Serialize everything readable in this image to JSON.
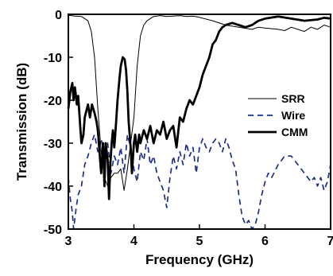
{
  "chart_data": {
    "type": "line",
    "title": "",
    "xlabel": "Frequency (GHz)",
    "ylabel": "Transmission (dB)",
    "xlim": [
      3,
      7
    ],
    "ylim": [
      -50,
      0
    ],
    "xticks": [
      3,
      4,
      5,
      6,
      7
    ],
    "yticks": [
      -50,
      -40,
      -30,
      -20,
      -10,
      0
    ],
    "xtick_labels": [
      "3",
      "4",
      "5",
      "6",
      "7"
    ],
    "ytick_labels": [
      "-50",
      "-40",
      "-30",
      "-20",
      "-10",
      "0"
    ],
    "grid": false,
    "legend": "right",
    "series": [
      {
        "name": "SRR",
        "color": "#000000",
        "style": "thin-solid",
        "points": [
          [
            3.0,
            -0.2
          ],
          [
            3.1,
            -0.4
          ],
          [
            3.2,
            -0.5
          ],
          [
            3.3,
            -1.5
          ],
          [
            3.35,
            -4
          ],
          [
            3.4,
            -10
          ],
          [
            3.45,
            -22
          ],
          [
            3.5,
            -32
          ],
          [
            3.55,
            -38
          ],
          [
            3.6,
            -40
          ],
          [
            3.65,
            -38
          ],
          [
            3.7,
            -37
          ],
          [
            3.75,
            -37
          ],
          [
            3.8,
            -36
          ],
          [
            3.85,
            -41
          ],
          [
            3.9,
            -36
          ],
          [
            3.95,
            -30
          ],
          [
            4.0,
            -24
          ],
          [
            4.05,
            -12
          ],
          [
            4.1,
            -5
          ],
          [
            4.15,
            -2.5
          ],
          [
            4.2,
            -1.5
          ],
          [
            4.3,
            -0.5
          ],
          [
            4.4,
            -0.3
          ],
          [
            4.5,
            -0.5
          ],
          [
            4.6,
            -0.4
          ],
          [
            4.7,
            -0.3
          ],
          [
            4.8,
            -0.5
          ],
          [
            4.9,
            -0.4
          ],
          [
            5.0,
            -0.7
          ],
          [
            5.2,
            -1.5
          ],
          [
            5.4,
            -2.5
          ],
          [
            5.6,
            -3
          ],
          [
            5.8,
            -3.5
          ],
          [
            5.9,
            -3
          ],
          [
            6.0,
            -3.2
          ],
          [
            6.2,
            -3.5
          ],
          [
            6.3,
            -3.8
          ],
          [
            6.4,
            -3
          ],
          [
            6.5,
            -3.5
          ],
          [
            6.6,
            -4
          ],
          [
            6.7,
            -3
          ],
          [
            6.8,
            -3.5
          ],
          [
            6.9,
            -2.5
          ],
          [
            7.0,
            -3
          ]
        ]
      },
      {
        "name": "Wire",
        "color": "#1c2f8a",
        "style": "dashed",
        "points": [
          [
            3.0,
            -38
          ],
          [
            3.03,
            -43
          ],
          [
            3.06,
            -46
          ],
          [
            3.08,
            -50
          ],
          [
            3.12,
            -45
          ],
          [
            3.15,
            -42
          ],
          [
            3.2,
            -40
          ],
          [
            3.25,
            -35
          ],
          [
            3.3,
            -33
          ],
          [
            3.35,
            -30
          ],
          [
            3.4,
            -28
          ],
          [
            3.45,
            -32
          ],
          [
            3.5,
            -29
          ],
          [
            3.55,
            -33
          ],
          [
            3.6,
            -30
          ],
          [
            3.65,
            -37
          ],
          [
            3.7,
            -33
          ],
          [
            3.75,
            -35
          ],
          [
            3.8,
            -31
          ],
          [
            3.85,
            -37
          ],
          [
            3.9,
            -28
          ],
          [
            3.95,
            -31
          ],
          [
            4.0,
            -36
          ],
          [
            4.05,
            -39
          ],
          [
            4.1,
            -32
          ],
          [
            4.15,
            -34
          ],
          [
            4.2,
            -29
          ],
          [
            4.25,
            -35
          ],
          [
            4.3,
            -33
          ],
          [
            4.35,
            -37
          ],
          [
            4.4,
            -39
          ],
          [
            4.45,
            -41
          ],
          [
            4.5,
            -45
          ],
          [
            4.55,
            -38
          ],
          [
            4.6,
            -33
          ],
          [
            4.65,
            -36
          ],
          [
            4.7,
            -32
          ],
          [
            4.75,
            -35
          ],
          [
            4.8,
            -30
          ],
          [
            4.85,
            -33
          ],
          [
            4.9,
            -31
          ],
          [
            4.95,
            -37
          ],
          [
            5.0,
            -31
          ],
          [
            5.05,
            -29
          ],
          [
            5.1,
            -31
          ],
          [
            5.15,
            -32
          ],
          [
            5.2,
            -30
          ],
          [
            5.25,
            -29
          ],
          [
            5.3,
            -30
          ],
          [
            5.35,
            -32
          ],
          [
            5.4,
            -29
          ],
          [
            5.45,
            -31
          ],
          [
            5.5,
            -34
          ],
          [
            5.55,
            -36
          ],
          [
            5.6,
            -42
          ],
          [
            5.65,
            -47
          ],
          [
            5.7,
            -49
          ],
          [
            5.75,
            -48
          ],
          [
            5.8,
            -50
          ],
          [
            5.85,
            -49
          ],
          [
            5.9,
            -46
          ],
          [
            5.95,
            -42
          ],
          [
            6.0,
            -39
          ],
          [
            6.05,
            -37
          ],
          [
            6.1,
            -38
          ],
          [
            6.2,
            -35
          ],
          [
            6.3,
            -33
          ],
          [
            6.4,
            -33
          ],
          [
            6.5,
            -35
          ],
          [
            6.6,
            -37
          ],
          [
            6.7,
            -39
          ],
          [
            6.75,
            -38
          ],
          [
            6.8,
            -40
          ],
          [
            6.85,
            -38
          ],
          [
            6.9,
            -41
          ],
          [
            6.95,
            -39
          ],
          [
            7.0,
            -35
          ]
        ]
      },
      {
        "name": "CMM",
        "color": "#000000",
        "style": "thick-solid",
        "points": [
          [
            3.0,
            -22
          ],
          [
            3.03,
            -18
          ],
          [
            3.06,
            -16
          ],
          [
            3.08,
            -20
          ],
          [
            3.1,
            -17
          ],
          [
            3.13,
            -21
          ],
          [
            3.15,
            -19
          ],
          [
            3.18,
            -26
          ],
          [
            3.2,
            -30
          ],
          [
            3.23,
            -28
          ],
          [
            3.25,
            -24
          ],
          [
            3.3,
            -21
          ],
          [
            3.33,
            -24
          ],
          [
            3.36,
            -21
          ],
          [
            3.4,
            -23
          ],
          [
            3.43,
            -25
          ],
          [
            3.45,
            -27
          ],
          [
            3.48,
            -33
          ],
          [
            3.5,
            -37
          ],
          [
            3.53,
            -30
          ],
          [
            3.55,
            -40
          ],
          [
            3.57,
            -30
          ],
          [
            3.6,
            -34
          ],
          [
            3.62,
            -43
          ],
          [
            3.64,
            -35
          ],
          [
            3.66,
            -30
          ],
          [
            3.68,
            -27
          ],
          [
            3.7,
            -31
          ],
          [
            3.72,
            -27
          ],
          [
            3.75,
            -20
          ],
          [
            3.78,
            -15
          ],
          [
            3.8,
            -12
          ],
          [
            3.83,
            -10
          ],
          [
            3.86,
            -10.5
          ],
          [
            3.88,
            -13
          ],
          [
            3.9,
            -18
          ],
          [
            3.92,
            -25
          ],
          [
            3.95,
            -31
          ],
          [
            3.97,
            -37
          ],
          [
            4.0,
            -30
          ],
          [
            4.02,
            -28
          ],
          [
            4.05,
            -32
          ],
          [
            4.08,
            -28
          ],
          [
            4.1,
            -30
          ],
          [
            4.15,
            -27
          ],
          [
            4.2,
            -29
          ],
          [
            4.25,
            -26
          ],
          [
            4.3,
            -30
          ],
          [
            4.35,
            -27
          ],
          [
            4.4,
            -28
          ],
          [
            4.45,
            -25
          ],
          [
            4.5,
            -29
          ],
          [
            4.55,
            -27
          ],
          [
            4.6,
            -26
          ],
          [
            4.65,
            -31
          ],
          [
            4.7,
            -24
          ],
          [
            4.75,
            -25
          ],
          [
            4.8,
            -22
          ],
          [
            4.85,
            -20
          ],
          [
            4.9,
            -21
          ],
          [
            4.95,
            -19
          ],
          [
            5.0,
            -17
          ],
          [
            5.05,
            -14
          ],
          [
            5.1,
            -12
          ],
          [
            5.15,
            -10
          ],
          [
            5.2,
            -7
          ],
          [
            5.25,
            -6
          ],
          [
            5.3,
            -4
          ],
          [
            5.35,
            -3
          ],
          [
            5.4,
            -2.5
          ],
          [
            5.5,
            -2
          ],
          [
            5.6,
            -2.5
          ],
          [
            5.7,
            -3
          ],
          [
            5.8,
            -2.5
          ],
          [
            5.9,
            -1.5
          ],
          [
            6.0,
            -1
          ],
          [
            6.2,
            -0.5
          ],
          [
            6.4,
            -1
          ],
          [
            6.6,
            -1.5
          ],
          [
            6.8,
            -1.2
          ],
          [
            6.9,
            -0.8
          ],
          [
            7.0,
            -1
          ]
        ]
      }
    ]
  }
}
